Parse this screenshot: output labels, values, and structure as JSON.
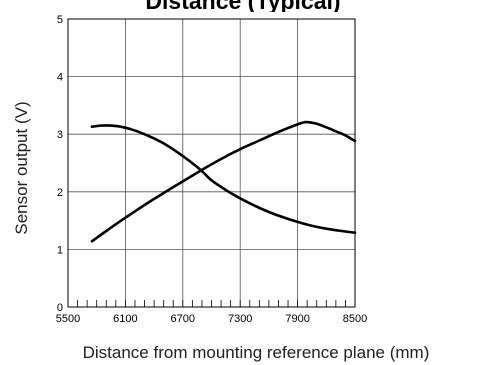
{
  "chart_data": {
    "type": "line",
    "title": "Distance (Typical)",
    "xlabel": "Distance from mounting reference plane (mm)",
    "ylabel": "Sensor output (V)",
    "xlim": [
      5500,
      8500
    ],
    "ylim": [
      0,
      5
    ],
    "x_ticks": [
      "5500",
      "6100",
      "6700",
      "7300",
      "7900",
      "8500"
    ],
    "y_ticks": [
      "0",
      "1",
      "2",
      "3",
      "4",
      "5"
    ],
    "x_minor_step": 100,
    "grid": true,
    "legend": "none",
    "series": [
      {
        "color": "#000000",
        "x": [
          5750,
          5850,
          5950,
          6050,
          6150,
          6300,
          6500,
          6700,
          6900,
          7000,
          7200,
          7400,
          7600,
          7800,
          8000,
          8200,
          8400,
          8500
        ],
        "values": [
          3.13,
          3.15,
          3.15,
          3.13,
          3.09,
          3.0,
          2.84,
          2.62,
          2.36,
          2.2,
          1.98,
          1.8,
          1.65,
          1.53,
          1.43,
          1.36,
          1.31,
          1.29
        ]
      },
      {
        "color": "#000000",
        "x": [
          5750,
          5900,
          6100,
          6300,
          6500,
          6700,
          6900,
          7100,
          7300,
          7500,
          7700,
          7900,
          7950,
          8000,
          8100,
          8200,
          8300,
          8400,
          8500
        ],
        "values": [
          1.14,
          1.32,
          1.55,
          1.77,
          1.98,
          2.18,
          2.38,
          2.57,
          2.74,
          2.89,
          3.04,
          3.17,
          3.2,
          3.21,
          3.18,
          3.12,
          3.05,
          2.98,
          2.88
        ]
      }
    ]
  }
}
